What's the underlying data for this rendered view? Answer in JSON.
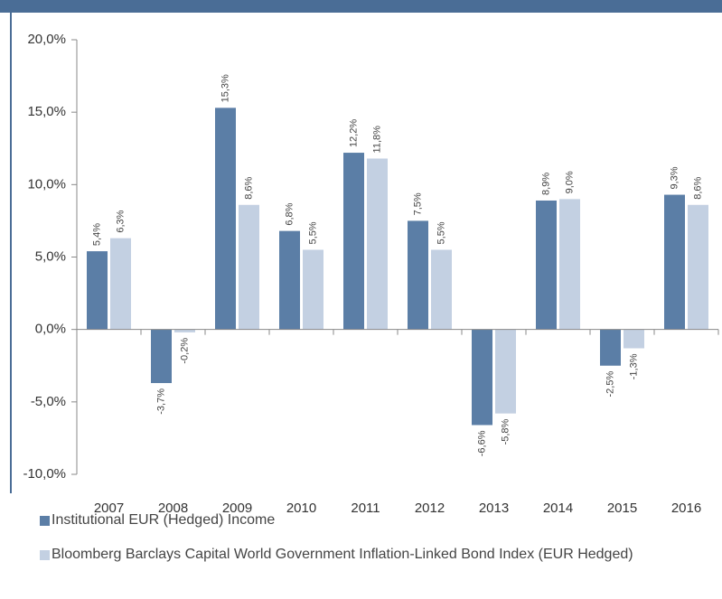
{
  "chart_data": {
    "type": "bar",
    "categories": [
      "2007",
      "2008",
      "2009",
      "2010",
      "2011",
      "2012",
      "2013",
      "2014",
      "2015",
      "2016"
    ],
    "series": [
      {
        "name": "Institutional EUR (Hedged) Income",
        "color": "#5b7ea6",
        "values": [
          5.4,
          -3.7,
          15.3,
          6.8,
          12.2,
          7.5,
          -6.6,
          8.9,
          -2.5,
          9.3
        ],
        "value_labels": [
          "5,4%",
          "-3,7%",
          "15,3%",
          "6,8%",
          "12,2%",
          "7,5%",
          "-6,6%",
          "8,9%",
          "-2,5%",
          "9,3%"
        ]
      },
      {
        "name": "Bloomberg Barclays Capital World Government Inflation-Linked Bond Index (EUR Hedged)",
        "color": "#c3d0e2",
        "values": [
          6.3,
          -0.2,
          8.6,
          5.5,
          11.8,
          5.5,
          -5.8,
          9.0,
          -1.3,
          8.6
        ],
        "value_labels": [
          "6,3%",
          "-0,2%",
          "8,6%",
          "5,5%",
          "11,8%",
          "5,5%",
          "-5,8%",
          "9,0%",
          "-1,3%",
          "8,6%"
        ]
      }
    ],
    "ylim": [
      -10,
      20
    ],
    "yticks": [
      {
        "value": -10,
        "label": "-10,0%"
      },
      {
        "value": -5,
        "label": "-5,0%"
      },
      {
        "value": 0,
        "label": "0,0%"
      },
      {
        "value": 5,
        "label": "5,0%"
      },
      {
        "value": 10,
        "label": "10,0%"
      },
      {
        "value": 15,
        "label": "15,0%"
      },
      {
        "value": 20,
        "label": "20,0%"
      }
    ]
  }
}
